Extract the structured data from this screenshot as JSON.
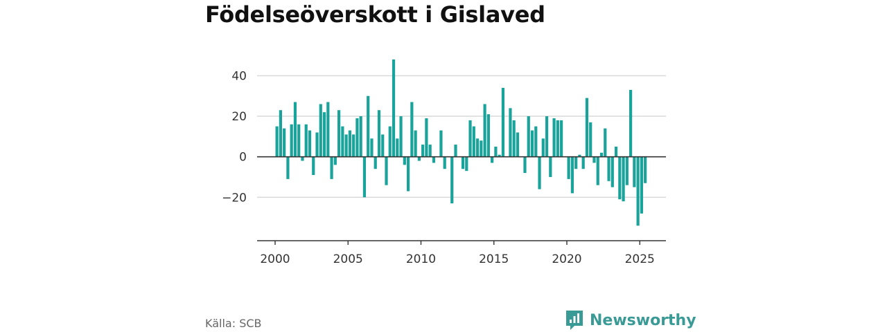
{
  "title": "Födelseöverskott i Gislaved",
  "source": "Källa: SCB",
  "brand": {
    "name": "Newsworthy",
    "logo_icon": "newsworthy-bar-chart-icon"
  },
  "colors": {
    "bar": "#1aa39b",
    "grid": "#d9d9d9",
    "zero_line": "#333333",
    "brand": "#3a9a96"
  },
  "chart_data": {
    "type": "bar",
    "x_axis": {
      "ticks": [
        "2000",
        "2005",
        "2010",
        "2015",
        "2020",
        "2025"
      ]
    },
    "y_axis": {
      "ticks": [
        "40",
        "20",
        "0",
        "−20"
      ],
      "tick_values": [
        40,
        20,
        0,
        -20
      ],
      "ylim": [
        -38,
        48
      ]
    },
    "grid": true,
    "legend": "none",
    "xlim": [
      1998.2,
      2026.9
    ],
    "series": [
      {
        "x": [
          2000.125,
          2000.375,
          2000.625,
          2000.875,
          2001.125,
          2001.375,
          2001.625,
          2001.875,
          2002.125,
          2002.375,
          2002.625,
          2002.875,
          2003.125,
          2003.375,
          2003.625,
          2003.875,
          2004.125,
          2004.375,
          2004.625,
          2004.875,
          2005.125,
          2005.375,
          2005.625,
          2005.875,
          2006.125,
          2006.375,
          2006.625,
          2006.875,
          2007.125,
          2007.375,
          2007.625,
          2007.875,
          2008.125,
          2008.375,
          2008.625,
          2008.875,
          2009.125,
          2009.375,
          2009.625,
          2009.875,
          2010.125,
          2010.375,
          2010.625,
          2010.875,
          2011.125,
          2011.375,
          2011.625,
          2011.875,
          2012.125,
          2012.375,
          2012.625,
          2012.875,
          2013.125,
          2013.375,
          2013.625,
          2013.875,
          2014.125,
          2014.375,
          2014.625,
          2014.875,
          2015.125,
          2015.375,
          2015.625,
          2015.875,
          2016.125,
          2016.375,
          2016.625,
          2016.875,
          2017.125,
          2017.375,
          2017.625,
          2017.875,
          2018.125,
          2018.375,
          2018.625,
          2018.875,
          2019.125,
          2019.375,
          2019.625,
          2019.875,
          2020.125,
          2020.375,
          2020.625,
          2020.875,
          2021.125,
          2021.375,
          2021.625,
          2021.875,
          2022.125,
          2022.375,
          2022.625,
          2022.875,
          2023.125,
          2023.375,
          2023.625,
          2023.875,
          2024.125,
          2024.375,
          2024.625,
          2024.875,
          2025.125,
          2025.375
        ],
        "values": [
          15,
          23,
          14,
          -11,
          16,
          27,
          16,
          -2,
          16,
          13,
          -9,
          12,
          26,
          22,
          27,
          -11,
          -4,
          23,
          15,
          11,
          13,
          11,
          19,
          20,
          -20,
          30,
          9,
          -6,
          23,
          11,
          -14,
          15,
          48,
          9,
          20,
          -4,
          -17,
          27,
          13,
          -2,
          6,
          19,
          6,
          -3,
          0,
          13,
          -6,
          0,
          -23,
          6,
          0,
          -6,
          -7,
          18,
          15,
          9,
          8,
          26,
          21,
          -3,
          5,
          1,
          34,
          0,
          24,
          18,
          12,
          0,
          -8,
          20,
          13,
          15,
          -16,
          9,
          20,
          -10,
          19,
          18,
          18,
          0,
          -11,
          -18,
          -6,
          1,
          -6,
          29,
          17,
          -3,
          -14,
          2,
          14,
          -12,
          -15,
          5,
          -21,
          -22,
          -14,
          33,
          -15,
          -34,
          -28,
          -13
        ]
      }
    ]
  }
}
